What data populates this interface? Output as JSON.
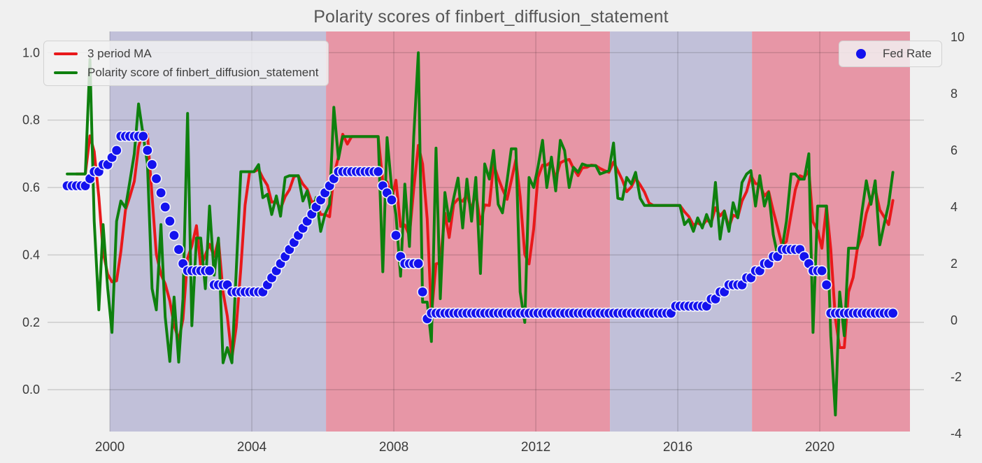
{
  "title": "Polarity scores of finbert_diffusion_statement",
  "legends": {
    "main": {
      "items": [
        {
          "label": "3 period MA",
          "color": "#e8191b",
          "type": "line"
        },
        {
          "label": "Polarity score of finbert_diffusion_statement",
          "color": "#0e800e",
          "type": "line"
        }
      ]
    },
    "fed": {
      "items": [
        {
          "label": "Fed Rate",
          "color": "#1412ee",
          "type": "dot"
        }
      ]
    }
  },
  "colors": {
    "figure_bg": "#f0f0f0",
    "grid": "rgba(0,0,0,0.15)",
    "band_blue": "#c1c0d9",
    "band_pink": "#e796a6",
    "tick_text": "#3b3b3b",
    "title_text": "#565656",
    "ma_line": "#e8191b",
    "polarity_line": "#0e800e",
    "fed_dot": "#1412ee"
  },
  "chart_data": {
    "type": "line",
    "title": "Polarity scores of finbert_diffusion_statement",
    "xlabel": "",
    "ylabel_left": "",
    "ylabel_right": "",
    "grid": true,
    "legend_positions": [
      "upper left",
      "upper right"
    ],
    "xlim": [
      1998.64,
      2022.54
    ],
    "ylim_left": [
      -0.124,
      1.063
    ],
    "ylim_right": [
      -3.93,
      10.2
    ],
    "x_ticks": [
      2000,
      2004,
      2008,
      2012,
      2016,
      2020
    ],
    "y_ticks_left_values": [
      0.0,
      0.2,
      0.4,
      0.6,
      0.8,
      1.0
    ],
    "y_ticks_left_labels": [
      "0.0",
      "0.2",
      "0.4",
      "0.6",
      "0.8",
      "1.0"
    ],
    "y_ticks_right_values": [
      -4,
      -2,
      0,
      2,
      4,
      6,
      8,
      10
    ],
    "y_ticks_right_labels": [
      "-4",
      "-2",
      "0",
      "2",
      "4",
      "6",
      "8",
      "10"
    ],
    "bands": [
      {
        "from": 2000.0,
        "to": 2006.09,
        "color_key": "band_blue"
      },
      {
        "from": 2006.09,
        "to": 2014.09,
        "color_key": "band_pink"
      },
      {
        "from": 2014.09,
        "to": 2018.09,
        "color_key": "band_blue"
      },
      {
        "from": 2018.09,
        "to": 2022.54,
        "color_key": "band_pink"
      }
    ],
    "x": [
      1998.8,
      1998.94,
      1999.06,
      1999.19,
      1999.31,
      1999.44,
      1999.56,
      1999.69,
      1999.81,
      1999.94,
      2000.06,
      2000.19,
      2000.31,
      2000.44,
      2000.56,
      2000.69,
      2000.81,
      2000.94,
      2001.06,
      2001.19,
      2001.31,
      2001.44,
      2001.56,
      2001.69,
      2001.81,
      2001.94,
      2002.06,
      2002.19,
      2002.31,
      2002.44,
      2002.56,
      2002.69,
      2002.81,
      2002.94,
      2003.06,
      2003.19,
      2003.31,
      2003.44,
      2003.56,
      2003.69,
      2003.81,
      2003.94,
      2004.06,
      2004.19,
      2004.31,
      2004.44,
      2004.56,
      2004.69,
      2004.81,
      2004.94,
      2005.06,
      2005.19,
      2005.31,
      2005.44,
      2005.56,
      2005.69,
      2005.81,
      2005.94,
      2006.06,
      2006.19,
      2006.31,
      2006.44,
      2006.56,
      2006.69,
      2006.81,
      2006.94,
      2007.06,
      2007.19,
      2007.31,
      2007.44,
      2007.56,
      2007.69,
      2007.81,
      2007.94,
      2008.06,
      2008.19,
      2008.31,
      2008.44,
      2008.56,
      2008.69,
      2008.81,
      2008.94,
      2009.06,
      2009.19,
      2009.31,
      2009.44,
      2009.56,
      2009.69,
      2009.81,
      2009.94,
      2010.06,
      2010.19,
      2010.31,
      2010.44,
      2010.56,
      2010.69,
      2010.81,
      2010.94,
      2011.06,
      2011.19,
      2011.31,
      2011.44,
      2011.56,
      2011.69,
      2011.81,
      2011.94,
      2012.06,
      2012.19,
      2012.31,
      2012.44,
      2012.56,
      2012.69,
      2012.81,
      2012.94,
      2013.06,
      2013.19,
      2013.31,
      2013.44,
      2013.56,
      2013.69,
      2013.81,
      2013.94,
      2014.06,
      2014.19,
      2014.31,
      2014.44,
      2014.56,
      2014.69,
      2014.81,
      2014.94,
      2015.06,
      2015.19,
      2015.31,
      2015.44,
      2015.56,
      2015.69,
      2015.81,
      2015.94,
      2016.06,
      2016.19,
      2016.31,
      2016.44,
      2016.56,
      2016.69,
      2016.81,
      2016.94,
      2017.06,
      2017.19,
      2017.31,
      2017.44,
      2017.56,
      2017.69,
      2017.81,
      2017.94,
      2018.06,
      2018.19,
      2018.31,
      2018.44,
      2018.56,
      2018.69,
      2018.81,
      2018.94,
      2019.06,
      2019.19,
      2019.31,
      2019.44,
      2019.56,
      2019.69,
      2019.81,
      2019.94,
      2020.06,
      2020.19,
      2020.31,
      2020.44,
      2020.56,
      2020.69,
      2020.81,
      2020.94,
      2021.06,
      2021.19,
      2021.31,
      2021.44,
      2021.56,
      2021.69,
      2021.81,
      2021.94,
      2022.06
    ],
    "series": [
      {
        "name": "Polarity score of finbert_diffusion_statement",
        "axis": "left",
        "color_key": "polarity_line",
        "values": [
          0.64,
          0.64,
          0.64,
          0.64,
          0.64,
          0.98,
          0.5,
          0.237,
          0.49,
          0.3,
          0.17,
          0.5,
          0.56,
          0.54,
          0.615,
          0.7,
          0.848,
          0.755,
          0.67,
          0.3,
          0.237,
          0.49,
          0.216,
          0.084,
          0.275,
          0.082,
          0.27,
          0.82,
          0.19,
          0.45,
          0.45,
          0.3,
          0.545,
          0.34,
          0.45,
          0.08,
          0.125,
          0.08,
          0.35,
          0.647,
          0.647,
          0.647,
          0.647,
          0.668,
          0.57,
          0.58,
          0.52,
          0.575,
          0.515,
          0.63,
          0.635,
          0.635,
          0.635,
          0.56,
          0.59,
          0.52,
          0.57,
          0.47,
          0.52,
          0.55,
          0.838,
          0.685,
          0.751,
          0.751,
          0.751,
          0.751,
          0.751,
          0.751,
          0.751,
          0.751,
          0.751,
          0.35,
          0.748,
          0.597,
          0.52,
          0.337,
          0.61,
          0.425,
          0.75,
          1.0,
          0.26,
          0.26,
          0.143,
          0.717,
          0.27,
          0.585,
          0.5,
          0.57,
          0.628,
          0.48,
          0.625,
          0.5,
          0.63,
          0.345,
          0.67,
          0.625,
          0.71,
          0.55,
          0.525,
          0.62,
          0.715,
          0.715,
          0.29,
          0.2,
          0.63,
          0.6,
          0.66,
          0.74,
          0.6,
          0.69,
          0.59,
          0.74,
          0.71,
          0.6,
          0.66,
          0.645,
          0.67,
          0.665,
          0.665,
          0.665,
          0.64,
          0.645,
          0.65,
          0.732,
          0.568,
          0.565,
          0.63,
          0.61,
          0.645,
          0.568,
          0.547,
          0.547,
          0.547,
          0.547,
          0.547,
          0.547,
          0.547,
          0.547,
          0.547,
          0.49,
          0.505,
          0.47,
          0.51,
          0.48,
          0.52,
          0.485,
          0.615,
          0.447,
          0.53,
          0.47,
          0.555,
          0.51,
          0.615,
          0.64,
          0.65,
          0.545,
          0.635,
          0.545,
          0.585,
          0.46,
          0.4,
          0.42,
          0.5,
          0.64,
          0.64,
          0.625,
          0.625,
          0.7,
          0.17,
          0.545,
          0.545,
          0.545,
          0.16,
          -0.075,
          0.29,
          0.16,
          0.42,
          0.42,
          0.42,
          0.53,
          0.62,
          0.55,
          0.62,
          0.43,
          0.49,
          0.55,
          0.645
        ]
      },
      {
        "name": "3 period MA",
        "axis": "left",
        "color_key": "ma_line",
        "derived_from": "Polarity score of finbert_diffusion_statement",
        "window": 3
      }
    ],
    "fed_rate": {
      "name": "Fed Rate",
      "axis": "right",
      "color_key": "fed_dot",
      "values": [
        4.75,
        4.75,
        4.75,
        4.75,
        4.75,
        5.0,
        5.25,
        5.25,
        5.5,
        5.5,
        5.75,
        6.0,
        6.5,
        6.5,
        6.5,
        6.5,
        6.5,
        6.5,
        6.0,
        5.5,
        5.0,
        4.5,
        4.0,
        3.5,
        3.0,
        2.5,
        2.0,
        1.75,
        1.75,
        1.75,
        1.75,
        1.75,
        1.75,
        1.25,
        1.25,
        1.25,
        1.25,
        1.0,
        1.0,
        1.0,
        1.0,
        1.0,
        1.0,
        1.0,
        1.0,
        1.25,
        1.5,
        1.75,
        2.0,
        2.25,
        2.5,
        2.75,
        3.0,
        3.25,
        3.5,
        3.75,
        4.0,
        4.25,
        4.5,
        4.75,
        5.0,
        5.25,
        5.25,
        5.25,
        5.25,
        5.25,
        5.25,
        5.25,
        5.25,
        5.25,
        5.25,
        4.75,
        4.5,
        4.25,
        3.0,
        2.25,
        2.0,
        2.0,
        2.0,
        2.0,
        1.0,
        0.05,
        0.25,
        0.25,
        0.25,
        0.25,
        0.25,
        0.25,
        0.25,
        0.25,
        0.25,
        0.25,
        0.25,
        0.25,
        0.25,
        0.25,
        0.25,
        0.25,
        0.25,
        0.25,
        0.25,
        0.25,
        0.25,
        0.25,
        0.25,
        0.25,
        0.25,
        0.25,
        0.25,
        0.25,
        0.25,
        0.25,
        0.25,
        0.25,
        0.25,
        0.25,
        0.25,
        0.25,
        0.25,
        0.25,
        0.25,
        0.25,
        0.25,
        0.25,
        0.25,
        0.25,
        0.25,
        0.25,
        0.25,
        0.25,
        0.25,
        0.25,
        0.25,
        0.25,
        0.25,
        0.25,
        0.25,
        0.5,
        0.5,
        0.5,
        0.5,
        0.5,
        0.5,
        0.5,
        0.5,
        0.75,
        0.75,
        1.0,
        1.0,
        1.25,
        1.25,
        1.25,
        1.25,
        1.5,
        1.5,
        1.75,
        1.75,
        2.0,
        2.0,
        2.25,
        2.25,
        2.5,
        2.5,
        2.5,
        2.5,
        2.5,
        2.25,
        2.0,
        1.75,
        1.75,
        1.75,
        1.25,
        0.25,
        0.25,
        0.25,
        0.25,
        0.25,
        0.25,
        0.25,
        0.25,
        0.25,
        0.25,
        0.25,
        0.25,
        0.25,
        0.25,
        0.25
      ]
    }
  }
}
